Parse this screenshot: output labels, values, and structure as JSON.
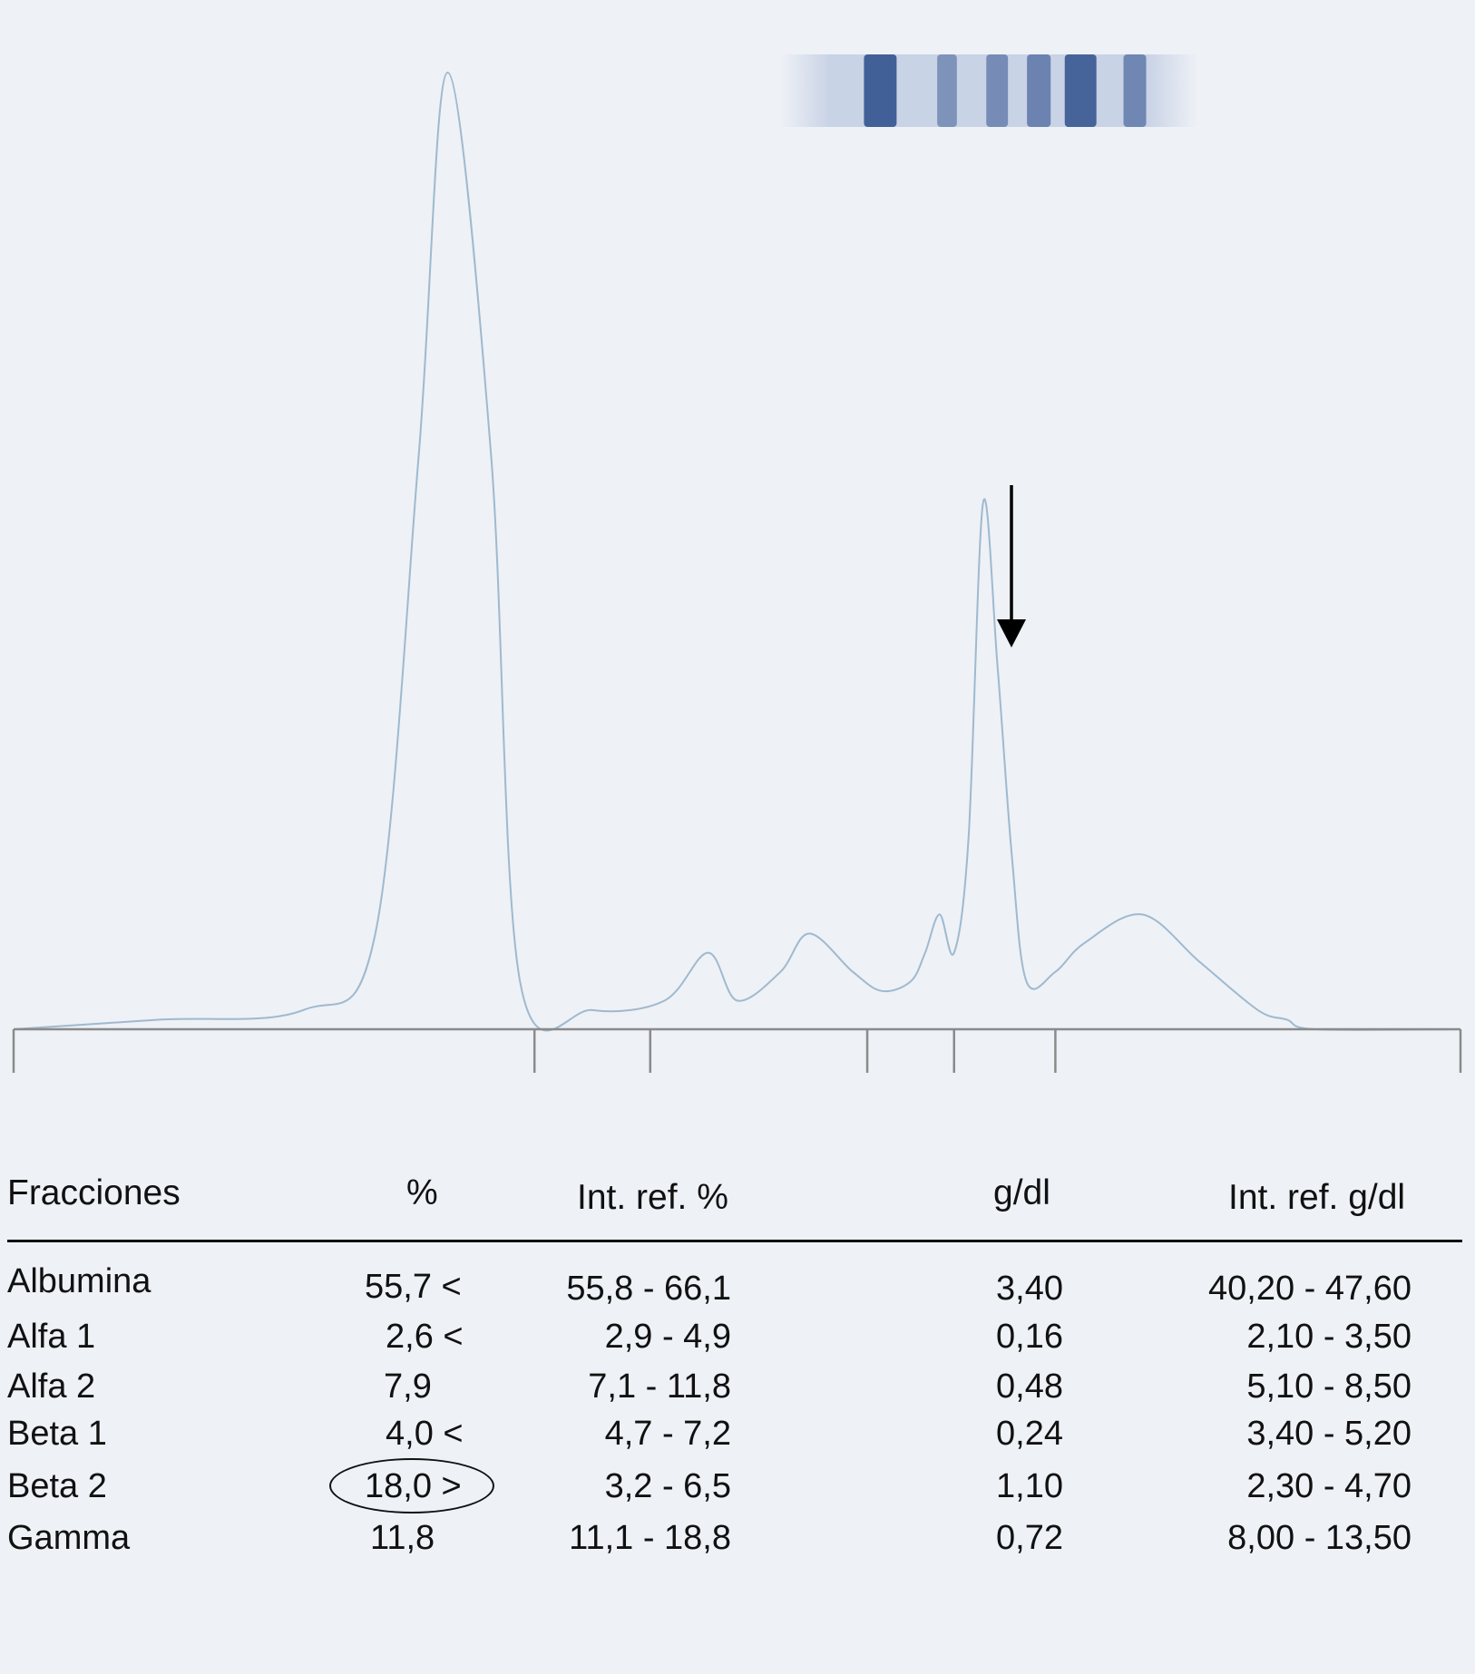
{
  "chart_data": {
    "type": "line",
    "description_of_marks": "serum protein electrophoresis densitogram",
    "x": [
      0,
      10,
      20,
      25,
      28,
      30,
      33,
      35,
      40,
      45,
      48,
      50,
      53,
      55,
      58,
      60,
      62,
      63,
      64,
      65,
      66,
      67,
      68,
      69,
      70,
      72,
      74,
      78,
      82,
      86,
      88,
      90,
      100
    ],
    "y": [
      0,
      0.01,
      0.02,
      0.1,
      0.6,
      1.0,
      0.6,
      0.05,
      0.02,
      0.03,
      0.08,
      0.03,
      0.06,
      0.1,
      0.06,
      0.04,
      0.05,
      0.08,
      0.12,
      0.08,
      0.2,
      0.55,
      0.38,
      0.18,
      0.05,
      0.06,
      0.09,
      0.12,
      0.07,
      0.02,
      0.01,
      0.0,
      0.0
    ],
    "fraction_boundaries": [
      0,
      36,
      44,
      59,
      65,
      72,
      100
    ],
    "grid": false,
    "legend": "none"
  },
  "gel_strip": {
    "band_color": "#3b5a94",
    "bands": [
      {
        "pos": 0.24,
        "strength": 1.0
      },
      {
        "pos": 0.4,
        "strength": 0.35
      },
      {
        "pos": 0.52,
        "strength": 0.45
      },
      {
        "pos": 0.62,
        "strength": 0.55
      },
      {
        "pos": 0.72,
        "strength": 0.95
      },
      {
        "pos": 0.85,
        "strength": 0.5
      }
    ]
  },
  "curve_color": "#9fb9cf",
  "axis_color": "#8a8a8a",
  "table": {
    "headers": {
      "fractions": "Fracciones",
      "pct": "%",
      "ref_pct": "Int. ref. %",
      "gdl": "g/dl",
      "ref_gdl": "Int. ref. g/dl"
    },
    "rows": [
      {
        "name": "Albumina",
        "pct": "55,7 <",
        "ref_pct": "55,8 - 66,1",
        "gdl": "3,40",
        "ref_gdl": "40,20 - 47,60"
      },
      {
        "name": "Alfa 1",
        "pct": "2,6 <",
        "ref_pct": "2,9 - 4,9",
        "gdl": "0,16",
        "ref_gdl": "2,10 - 3,50"
      },
      {
        "name": "Alfa 2",
        "pct": "7,9",
        "ref_pct": "7,1 - 11,8",
        "gdl": "0,48",
        "ref_gdl": "5,10 - 8,50"
      },
      {
        "name": "Beta 1",
        "pct": "4,0 <",
        "ref_pct": "4,7 - 7,2",
        "gdl": "0,24",
        "ref_gdl": "3,40 - 5,20"
      },
      {
        "name": "Beta 2",
        "pct": "18,0 >",
        "ref_pct": "3,2 - 6,5",
        "gdl": "1,10",
        "ref_gdl": "2,30 - 4,70"
      },
      {
        "name": "Gamma",
        "pct": "11,8",
        "ref_pct": "11,1 - 18,8",
        "gdl": "0,72",
        "ref_gdl": "8,00 - 13,50"
      }
    ],
    "highlighted_row": "Beta 2"
  }
}
